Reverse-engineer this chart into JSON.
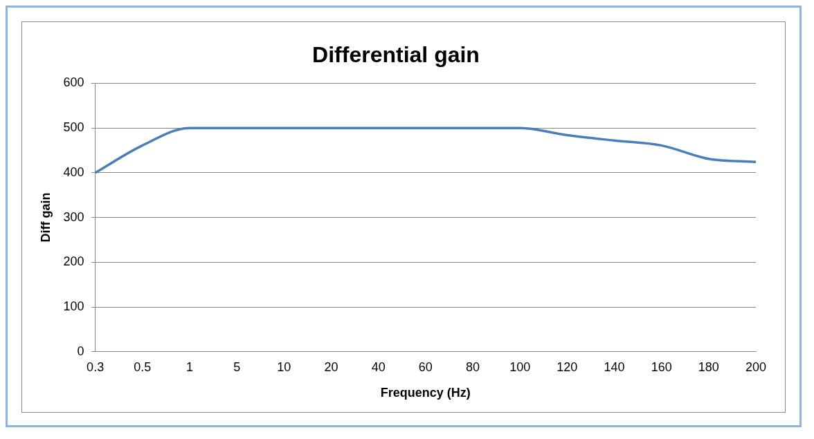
{
  "chart_data": {
    "type": "line",
    "title": "Differential gain",
    "xlabel": "Frequency (Hz)",
    "ylabel": "Diff gain",
    "categories": [
      "0.3",
      "0.5",
      "1",
      "5",
      "10",
      "20",
      "40",
      "60",
      "80",
      "100",
      "120",
      "140",
      "160",
      "180",
      "200"
    ],
    "series": [
      {
        "color": "#4a7ebb",
        "values": [
          400,
          461,
          500,
          500,
          500,
          500,
          500,
          500,
          500,
          500,
          484,
          472,
          461,
          431,
          424
        ]
      }
    ],
    "ylim": [
      0,
      600
    ],
    "yticks": [
      0,
      100,
      200,
      300,
      400,
      500,
      600
    ],
    "grid": "y",
    "legend": false,
    "marker": "none",
    "line_style": "solid"
  }
}
